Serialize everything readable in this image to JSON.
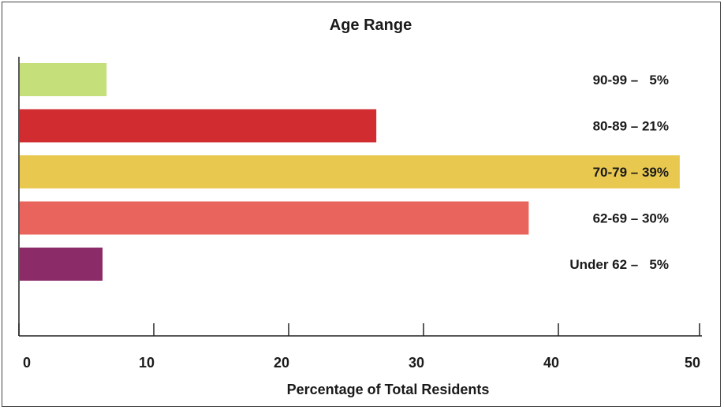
{
  "chart_data": {
    "type": "bar",
    "orientation": "horizontal",
    "title": "Age Range",
    "xlabel": "Percentage of Total Residents",
    "ylabel": "",
    "xlim": [
      0,
      50
    ],
    "xticks": [
      "0",
      "10",
      "20",
      "30",
      "40",
      "50"
    ],
    "grid": false,
    "bars": [
      {
        "value": 6.5,
        "label": "90-99 –   5%",
        "color": "#c5df7a"
      },
      {
        "value": 26.5,
        "label": "80-89 – 21%",
        "color": "#d12c2f"
      },
      {
        "value": 49,
        "label": "70-79 – 39%",
        "color": "#e8c84f"
      },
      {
        "value": 37.8,
        "label": "62-69 – 30%",
        "color": "#e8645c"
      },
      {
        "value": 6.2,
        "label": "Under 62 –   5%",
        "color": "#8b2c68"
      }
    ]
  }
}
